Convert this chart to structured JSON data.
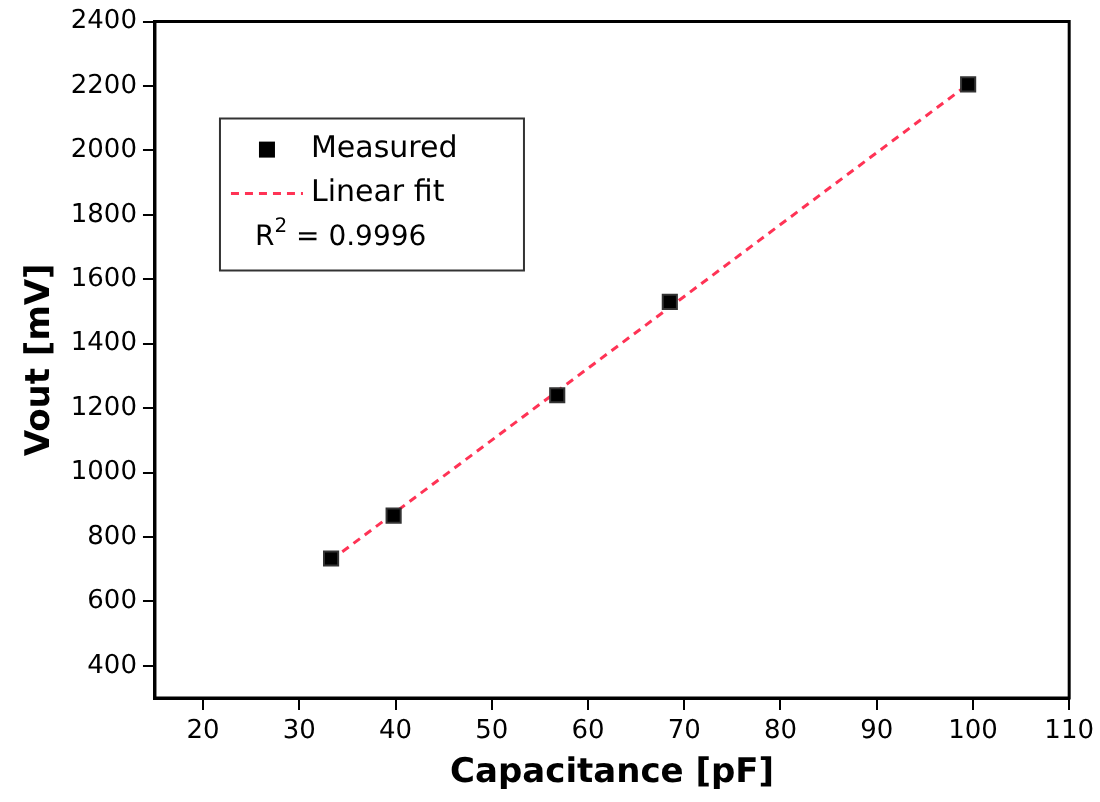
{
  "chart_data": {
    "type": "scatter",
    "xlabel": "Capacitance [pF]",
    "ylabel": "Vout [mV]",
    "xlim": [
      15,
      110
    ],
    "xticks": [
      20,
      30,
      40,
      50,
      60,
      70,
      80,
      90,
      100,
      110
    ],
    "ylim": [
      300,
      2400
    ],
    "yticks": [
      400,
      600,
      800,
      1000,
      1200,
      1400,
      1600,
      1800,
      2000,
      2200,
      2400
    ],
    "series": [
      {
        "name": "Measured",
        "type": "scatter",
        "color": "#000000",
        "marker": "square",
        "x": [
          33.3,
          39.8,
          56.8,
          68.5,
          99.5
        ],
        "values": [
          733,
          866,
          1240,
          1530,
          2205
        ]
      },
      {
        "name": "Linear fit",
        "type": "line",
        "color": "#ff3355",
        "line_style": "dashed",
        "marker": "none",
        "x": [
          33.3,
          99.5
        ],
        "values": [
          728,
          2205
        ]
      }
    ],
    "annotations": [
      "R$^{2}$ = 0.9996"
    ],
    "legend": "top left",
    "grid": false
  }
}
